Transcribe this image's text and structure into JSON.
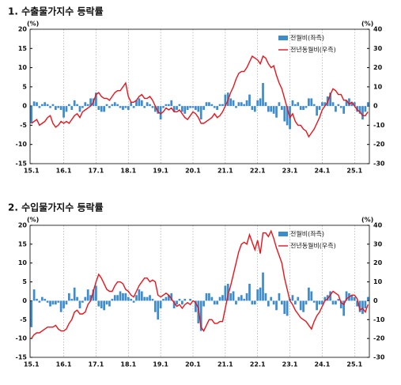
{
  "chart_data": [
    {
      "type": "bar_line",
      "title": "1. 수출물가지수 등락률",
      "y_label": "(%)",
      "y2_label": "(%)",
      "categories": [
        "15.1",
        null,
        null,
        null,
        null,
        null,
        null,
        null,
        null,
        null,
        null,
        null,
        "16.1",
        null,
        null,
        null,
        null,
        null,
        null,
        null,
        null,
        null,
        null,
        null,
        "17.1",
        null,
        null,
        null,
        null,
        null,
        null,
        null,
        null,
        null,
        null,
        null,
        "18.1",
        null,
        null,
        null,
        null,
        null,
        null,
        null,
        null,
        null,
        null,
        null,
        "19.1",
        null,
        null,
        null,
        null,
        null,
        null,
        null,
        null,
        null,
        null,
        null,
        "20.1",
        null,
        null,
        null,
        null,
        null,
        null,
        null,
        null,
        null,
        null,
        null,
        "21.1",
        null,
        null,
        null,
        null,
        null,
        null,
        null,
        null,
        null,
        null,
        null,
        "22.1",
        null,
        null,
        null,
        null,
        null,
        null,
        null,
        null,
        null,
        null,
        null,
        "23.1",
        null,
        null,
        null,
        null,
        null,
        null,
        null,
        null,
        null,
        null,
        null,
        "24.1",
        null,
        null,
        null,
        null,
        null,
        null,
        null,
        null,
        null,
        null,
        null,
        "25.1",
        null,
        null,
        null,
        null,
        null
      ],
      "series": [
        {
          "name": "전월비(좌측)",
          "kind": "bar",
          "color": "#3d8ccc",
          "values": [
            -4.5,
            1.2,
            1,
            -0.5,
            0.5,
            1,
            0.5,
            -0.5,
            0.5,
            -1,
            -0.5,
            -1,
            -3,
            -1.5,
            0.5,
            -1,
            1.5,
            0.5,
            -1.5,
            -0.5,
            1,
            0.5,
            2,
            2,
            3.5,
            -1,
            -1.5,
            -1.5,
            0.5,
            -0.5,
            0.5,
            1,
            0.5,
            -0.5,
            -1,
            -0.5,
            -1,
            1,
            -0.5,
            1.5,
            2,
            1.5,
            -0.5,
            1,
            0.5,
            -0.5,
            -1.5,
            -2,
            -3.5,
            -0.5,
            0.5,
            0.5,
            1.5,
            -1.5,
            -1,
            0.5,
            -1.5,
            -2,
            -1,
            -0.5,
            -0.5,
            -1,
            -1.5,
            -3.5,
            -1,
            1,
            1,
            0.5,
            -0.5,
            -1,
            0.5,
            0.5,
            3,
            3.5,
            2,
            1.5,
            -0.5,
            1,
            1,
            0.5,
            1.5,
            3,
            -1,
            -1.5,
            1.5,
            2,
            6,
            1,
            -1.5,
            -1.5,
            -2,
            -3,
            1,
            -1,
            -4,
            -5,
            -6,
            1.5,
            0.5,
            1,
            -1,
            -1,
            -0.5,
            2,
            2,
            0.5,
            -2.5,
            -1,
            1,
            1,
            2.5,
            3.5,
            1,
            -1.5,
            0.5,
            -0.5,
            -2,
            1.5,
            2,
            1,
            1,
            -1.5,
            -2,
            -3.5,
            -1.5,
            1
          ]
        },
        {
          "name": "전년동월비(우측)",
          "kind": "line",
          "axis": "y2",
          "color": "#e8141c",
          "values": [
            -9,
            -8,
            -7,
            -10,
            -9,
            -8,
            -6,
            -5,
            -9,
            -11,
            -10,
            -8,
            -9,
            -8,
            -9,
            -7,
            -5,
            -4,
            -6,
            -3,
            -2,
            -1,
            0,
            2,
            6,
            7,
            5,
            4,
            4,
            3,
            5,
            7,
            8,
            8,
            10,
            12,
            5,
            2,
            2,
            3,
            5,
            6,
            4,
            4,
            5,
            3,
            0,
            -3,
            -4,
            -3,
            -1,
            -2,
            -1,
            -3,
            -3,
            -2,
            -4,
            -6,
            -7,
            -5,
            -3,
            -4,
            -6,
            -9,
            -9,
            -8,
            -7,
            -6,
            -4,
            -6,
            -5,
            -3,
            0,
            3,
            7,
            10,
            14,
            17,
            18,
            18,
            20,
            23,
            26,
            25,
            24,
            22,
            26,
            25,
            22,
            20,
            21,
            16,
            12,
            9,
            4,
            -1,
            -6,
            -4,
            -8,
            -10,
            -10,
            -12,
            -13,
            -16,
            -14,
            -12,
            -9,
            -6,
            -2,
            0,
            2,
            6,
            9,
            8,
            6,
            6,
            3,
            3,
            1,
            2,
            0,
            -2,
            -3,
            -5,
            -5,
            -3
          ]
        }
      ],
      "ylim": [
        -15,
        20
      ],
      "yticks": [
        -15,
        -10,
        -5,
        0,
        5,
        10,
        15,
        20
      ],
      "y2lim": [
        -30,
        40
      ],
      "y2ticks": [
        -30,
        -20,
        -10,
        0,
        10,
        20,
        30,
        40
      ],
      "grid": true,
      "legend": "upper right"
    },
    {
      "type": "bar_line",
      "title": "2. 수입물가지수 등락률",
      "y_label": "(%)",
      "y2_label": "(%)",
      "categories": [
        "15.1",
        null,
        null,
        null,
        null,
        null,
        null,
        null,
        null,
        null,
        null,
        null,
        "16.1",
        null,
        null,
        null,
        null,
        null,
        null,
        null,
        null,
        null,
        null,
        null,
        "17.1",
        null,
        null,
        null,
        null,
        null,
        null,
        null,
        null,
        null,
        null,
        null,
        "18.1",
        null,
        null,
        null,
        null,
        null,
        null,
        null,
        null,
        null,
        null,
        null,
        "19.1",
        null,
        null,
        null,
        null,
        null,
        null,
        null,
        null,
        null,
        null,
        null,
        "20.1",
        null,
        null,
        null,
        null,
        null,
        null,
        null,
        null,
        null,
        null,
        null,
        "21.1",
        null,
        null,
        null,
        null,
        null,
        null,
        null,
        null,
        null,
        null,
        null,
        "22.1",
        null,
        null,
        null,
        null,
        null,
        null,
        null,
        null,
        null,
        null,
        null,
        "23.1",
        null,
        null,
        null,
        null,
        null,
        null,
        null,
        null,
        null,
        null,
        null,
        "24.1",
        null,
        null,
        null,
        null,
        null,
        null,
        null,
        null,
        null,
        null,
        null,
        "25.1",
        null,
        null,
        null,
        null,
        null
      ],
      "series": [
        {
          "name": "전월비(좌측)",
          "kind": "bar",
          "color": "#3d8ccc",
          "values": [
            -7,
            3,
            0.5,
            -0.5,
            1,
            0.5,
            -0.5,
            -1.5,
            -1,
            -1,
            -0.5,
            -3,
            -2,
            -1,
            2,
            0.5,
            3.5,
            1,
            -2,
            -0.5,
            1,
            3,
            1.5,
            3,
            4,
            -1.5,
            -2,
            -2.5,
            -1,
            -1.5,
            0.5,
            1.5,
            1.5,
            2.5,
            2,
            2,
            1,
            0.5,
            -0.5,
            1.5,
            3,
            2.5,
            1,
            1,
            1.5,
            0.5,
            -3,
            -5,
            -2,
            0.5,
            1,
            1.5,
            2,
            -2,
            -1,
            0.5,
            -1,
            0.5,
            0,
            0.5,
            0,
            -3,
            -6,
            -8,
            -1.5,
            2,
            2,
            1,
            -1,
            -1,
            1,
            1.5,
            4,
            4.5,
            2,
            2.5,
            -1,
            1,
            1.5,
            0.5,
            2,
            4.5,
            -1,
            -1,
            3,
            3.5,
            7.5,
            2,
            -1.5,
            1,
            -1,
            -2.5,
            2,
            -1,
            -3.5,
            -4,
            0.5,
            1.5,
            -1,
            1,
            -2.5,
            -3,
            -1,
            3.5,
            2.5,
            -0.5,
            -2.5,
            -1,
            -1,
            1,
            1.5,
            2.5,
            -1,
            -1,
            0.5,
            -2,
            -4,
            2.5,
            2,
            1.5,
            1,
            -1.5,
            -3,
            -3.5,
            -2,
            1
          ]
        },
        {
          "name": "전년동월비(우측)",
          "kind": "line",
          "axis": "y2",
          "color": "#e8141c",
          "values": [
            -20,
            -18,
            -17,
            -17,
            -16,
            -15,
            -14,
            -14,
            -14,
            -13,
            -15,
            -16,
            -16,
            -15,
            -12,
            -10,
            -6,
            -5,
            -7,
            -7,
            -6,
            -2,
            0,
            5,
            10,
            14,
            12,
            9,
            6,
            5,
            5,
            8,
            10,
            10,
            9,
            6,
            5,
            3,
            2,
            5,
            8,
            10,
            12,
            12,
            10,
            11,
            10,
            3,
            2,
            3,
            4,
            3,
            1,
            -1,
            -3,
            -2,
            -4,
            -2,
            -1,
            -2,
            0,
            -1,
            -4,
            -14,
            -16,
            -13,
            -10,
            -10,
            -12,
            -12,
            -11,
            -11,
            -4,
            3,
            8,
            14,
            20,
            26,
            30,
            31,
            30,
            35,
            31,
            27,
            32,
            25,
            36,
            36,
            34,
            37,
            33,
            28,
            24,
            20,
            12,
            6,
            0,
            -2,
            -5,
            -7,
            -9,
            -10,
            -11,
            -13,
            -15,
            -11,
            -8,
            -6,
            -3,
            0,
            1,
            3,
            5,
            4,
            3,
            -1,
            -2,
            1,
            2,
            3,
            3,
            1,
            -5,
            -4,
            -6,
            -2
          ]
        }
      ],
      "ylim": [
        -15,
        20
      ],
      "yticks": [
        -15,
        -10,
        -5,
        0,
        5,
        10,
        15,
        20
      ],
      "y2lim": [
        -30,
        40
      ],
      "y2ticks": [
        -30,
        -20,
        -10,
        0,
        10,
        20,
        30,
        40
      ],
      "grid": true,
      "legend": "upper right"
    }
  ]
}
